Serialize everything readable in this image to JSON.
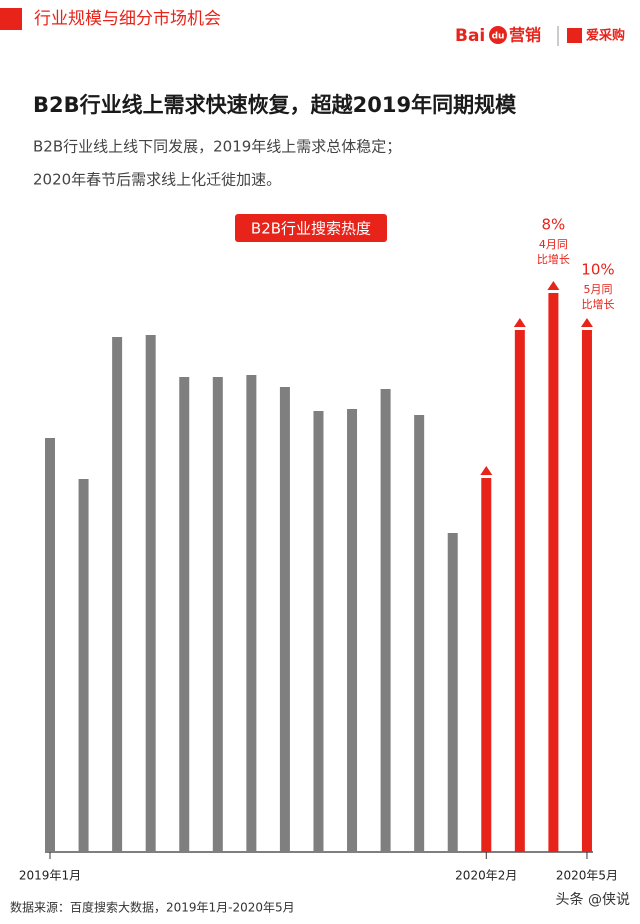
{
  "header": {
    "section": "行业规模与细分市场机会",
    "logo_baidu_1": "Bai",
    "logo_baidu_2": "du",
    "logo_baidu_3": "营销",
    "logo_partner": "爱采购"
  },
  "chart_data": {
    "type": "bar",
    "title": "B2B行业线上需求快速恢复，超越2019年同期规模",
    "subtitle": [
      "B2B行业线上线下同发展，2019年线上需求总体稳定；",
      "2020年春节后需求线上化迁徙加速。"
    ],
    "badge": "B2B行业搜索热度",
    "categories": [
      "2019年1月",
      null,
      null,
      null,
      null,
      null,
      null,
      null,
      null,
      null,
      null,
      null,
      null,
      "2020年2月",
      null,
      null,
      "2020年5月"
    ],
    "series": [
      {
        "name": "2019",
        "color": "#7f7f7f",
        "values": [
          414,
          373,
          515,
          517,
          475,
          475,
          477,
          465,
          441,
          443,
          463,
          437,
          319,
          null,
          null,
          null,
          null
        ]
      },
      {
        "name": "2020",
        "color": "#e8231a",
        "values": [
          null,
          null,
          null,
          null,
          null,
          null,
          null,
          null,
          null,
          null,
          null,
          null,
          null,
          374,
          522,
          559,
          522
        ]
      }
    ],
    "annotations": [
      {
        "index": 15,
        "text": "8%",
        "note": [
          "4月同",
          "比增长"
        ]
      },
      {
        "index": 16,
        "text": "10%",
        "note": [
          "5月同",
          "比增长"
        ]
      }
    ]
  },
  "source": "数据来源：百度搜索大数据，2019年1月-2020年5月",
  "watermark": "头条 @侠说"
}
